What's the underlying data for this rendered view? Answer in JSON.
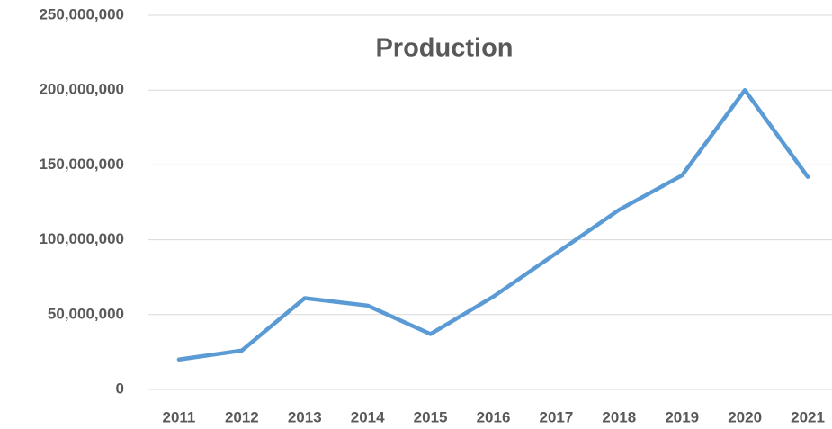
{
  "chart_data": {
    "type": "line",
    "title": "Production",
    "categories": [
      "2011",
      "2012",
      "2013",
      "2014",
      "2015",
      "2016",
      "2017",
      "2018",
      "2019",
      "2020",
      "2021"
    ],
    "series": [
      {
        "name": "Production",
        "color": "#5b9bd5",
        "values": [
          20000000,
          26000000,
          61000000,
          56000000,
          37000000,
          62000000,
          91000000,
          120000000,
          143000000,
          200000000,
          142000000
        ]
      }
    ],
    "ylim": [
      0,
      250000000
    ],
    "yticks": [
      0,
      {
        "value": 50000000,
        "label": "50,000,000"
      },
      {
        "value": 100000000,
        "label": "100,000,000"
      },
      {
        "value": 150000000,
        "label": "150,000,000"
      },
      {
        "value": 200000000,
        "label": "200,000,000"
      },
      {
        "value": 250000000,
        "label": "250,000,000"
      }
    ],
    "grid": true
  }
}
